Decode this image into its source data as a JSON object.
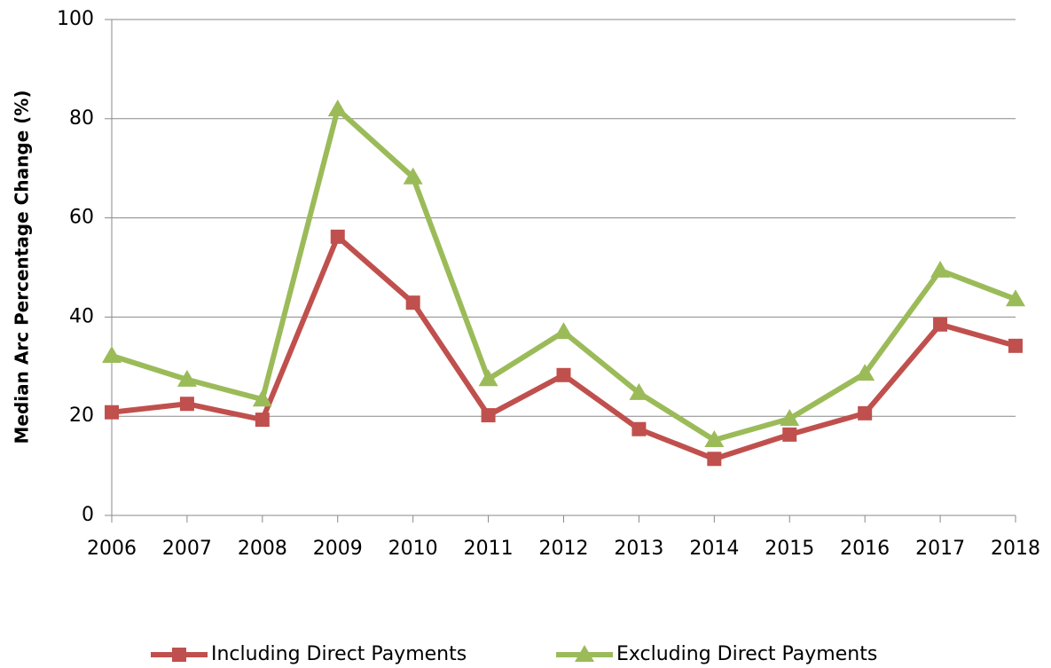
{
  "chart_data": {
    "type": "line",
    "y_label": "Median Arc Percentage Change (%)",
    "categories": [
      "2006",
      "2007",
      "2008",
      "2009",
      "2010",
      "2011",
      "2012",
      "2013",
      "2014",
      "2015",
      "2016",
      "2017",
      "2018"
    ],
    "series": [
      {
        "name": "Including Direct Payments",
        "color": "#c0504d",
        "marker": "square",
        "values": [
          20.8,
          22.5,
          19.3,
          56.2,
          42.9,
          20.2,
          28.3,
          17.4,
          11.4,
          16.3,
          20.6,
          38.5,
          34.2
        ]
      },
      {
        "name": "Excluding Direct Payments",
        "color": "#9bbb59",
        "marker": "triangle",
        "values": [
          32.2,
          27.4,
          23.4,
          81.9,
          68.2,
          27.5,
          37.0,
          24.7,
          15.2,
          19.5,
          28.6,
          49.4,
          43.6
        ]
      }
    ],
    "ylim": [
      0,
      100
    ],
    "yticks": [
      0,
      20,
      40,
      60,
      80,
      100
    ],
    "grid": true,
    "legend": "bottom"
  }
}
